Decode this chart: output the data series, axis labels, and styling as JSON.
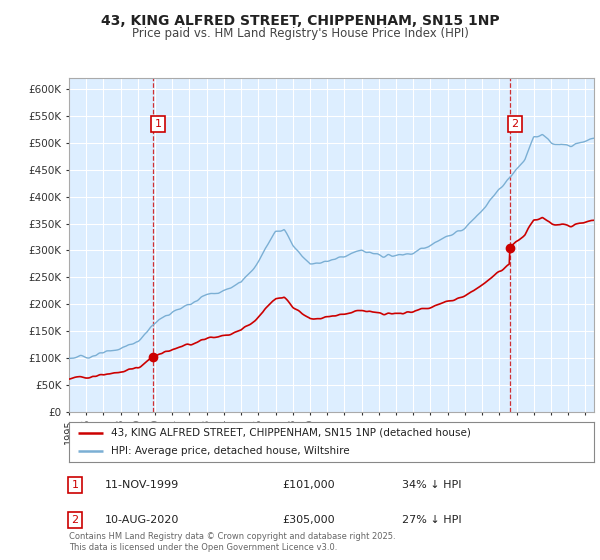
{
  "title_line1": "43, KING ALFRED STREET, CHIPPENHAM, SN15 1NP",
  "title_line2": "Price paid vs. HM Land Registry's House Price Index (HPI)",
  "ylim": [
    0,
    620000
  ],
  "yticks": [
    0,
    50000,
    100000,
    150000,
    200000,
    250000,
    300000,
    350000,
    400000,
    450000,
    500000,
    550000,
    600000
  ],
  "ytick_labels": [
    "£0",
    "£50K",
    "£100K",
    "£150K",
    "£200K",
    "£250K",
    "£300K",
    "£350K",
    "£400K",
    "£450K",
    "£500K",
    "£550K",
    "£600K"
  ],
  "hpi_color": "#7bafd4",
  "hpi_fill_color": "#c8dff0",
  "price_color": "#cc0000",
  "background_color": "#ffffff",
  "plot_bg_color": "#ddeeff",
  "grid_color": "#ffffff",
  "legend_label_price": "43, KING ALFRED STREET, CHIPPENHAM, SN15 1NP (detached house)",
  "legend_label_hpi": "HPI: Average price, detached house, Wiltshire",
  "annotation1_date": "11-NOV-1999",
  "annotation1_price": "£101,000",
  "annotation1_hpi": "34% ↓ HPI",
  "annotation2_date": "10-AUG-2020",
  "annotation2_price": "£305,000",
  "annotation2_hpi": "27% ↓ HPI",
  "footer": "Contains HM Land Registry data © Crown copyright and database right 2025.\nThis data is licensed under the Open Government Licence v3.0.",
  "sale1_year": 1999.87,
  "sale1_price": 101000,
  "sale2_year": 2020.61,
  "sale2_price": 305000,
  "xlim_start": 1995.0,
  "xlim_end": 2025.5
}
